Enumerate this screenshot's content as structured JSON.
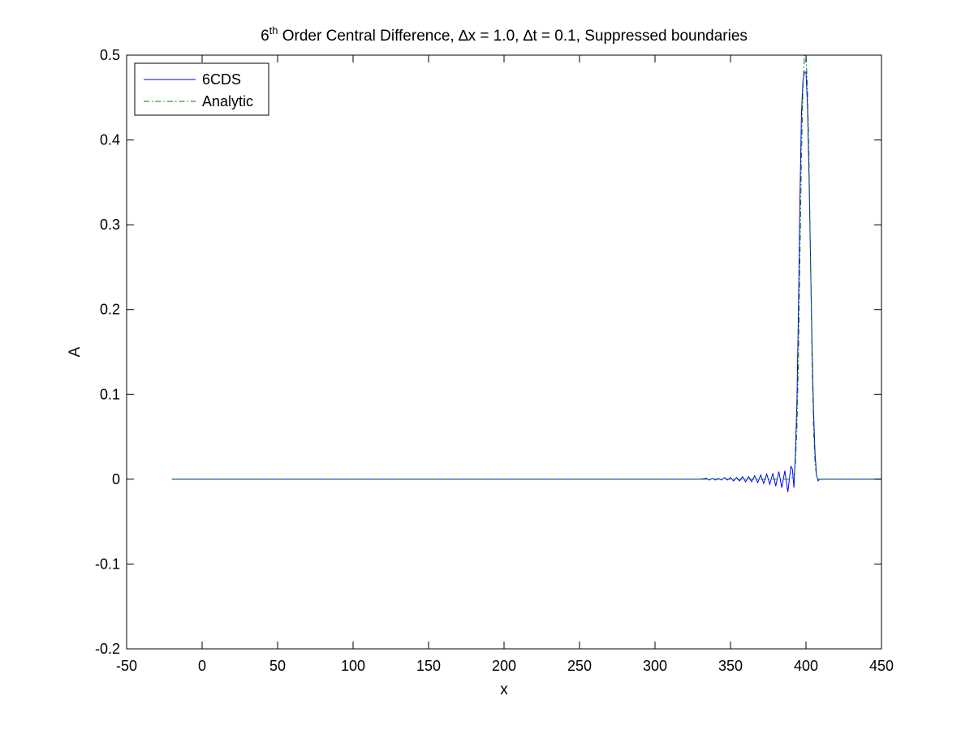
{
  "chart_data": {
    "type": "line",
    "title": {
      "prefix": "6",
      "superscript": "th",
      "rest": " Order Central Difference, ∆x = 1.0, ∆t = 0.1, Suppressed boundaries"
    },
    "xlabel": "x",
    "ylabel": "A",
    "xlim": [
      -50,
      450
    ],
    "ylim": [
      -0.2,
      0.5
    ],
    "xticks": [
      -50,
      0,
      50,
      100,
      150,
      200,
      250,
      300,
      350,
      400,
      450
    ],
    "xtick_labels": [
      "-50",
      "0",
      "50",
      "100",
      "150",
      "200",
      "250",
      "300",
      "350",
      "400",
      "450"
    ],
    "yticks": [
      -0.2,
      -0.1,
      0,
      0.1,
      0.2,
      0.3,
      0.4,
      0.5
    ],
    "ytick_labels": [
      "-0.2",
      "-0.1",
      "0",
      "0.1",
      "0.2",
      "0.3",
      "0.4",
      "0.5"
    ],
    "grid": false,
    "legend_position": "top-left",
    "series": [
      {
        "name": "6CDS",
        "color": "#0000ff",
        "style": "solid",
        "x": [
          -20,
          330,
          334,
          336,
          338,
          340,
          342,
          344,
          346,
          348,
          350,
          352,
          354,
          356,
          358,
          360,
          362,
          364,
          366,
          368,
          370,
          372,
          374,
          376,
          378,
          380,
          382,
          384,
          386,
          388,
          390,
          391,
          392,
          393,
          394,
          395,
          396,
          397,
          398,
          399,
          400,
          401,
          402,
          403,
          404,
          405,
          406,
          407,
          408,
          409,
          410,
          412,
          450
        ],
        "y": [
          0,
          0,
          0.001,
          -0.001,
          0.001,
          -0.001,
          0.001,
          -0.001,
          0.002,
          -0.001,
          0.002,
          -0.002,
          0.002,
          -0.002,
          0.003,
          -0.003,
          0.003,
          -0.003,
          0.004,
          -0.004,
          0.005,
          -0.005,
          0.006,
          -0.006,
          0.007,
          -0.008,
          0.009,
          -0.01,
          0.01,
          -0.015,
          0.015,
          0.012,
          -0.01,
          0.03,
          0.09,
          0.2,
          0.33,
          0.43,
          0.47,
          0.48,
          0.48,
          0.44,
          0.36,
          0.26,
          0.16,
          0.08,
          0.03,
          0.005,
          -0.002,
          0,
          0,
          0,
          0
        ]
      },
      {
        "name": "Analytic",
        "color": "#008000",
        "style": "dashdot",
        "x": [
          -20,
          390,
          392,
          393,
          394,
          395,
          396,
          397,
          398,
          399,
          400,
          401,
          402,
          403,
          404,
          405,
          406,
          407,
          408,
          410,
          450
        ],
        "y": [
          0,
          0,
          0.004,
          0.018,
          0.06,
          0.14,
          0.26,
          0.38,
          0.46,
          0.5,
          0.5,
          0.46,
          0.38,
          0.26,
          0.14,
          0.06,
          0.018,
          0.004,
          0,
          0,
          0
        ]
      }
    ]
  }
}
